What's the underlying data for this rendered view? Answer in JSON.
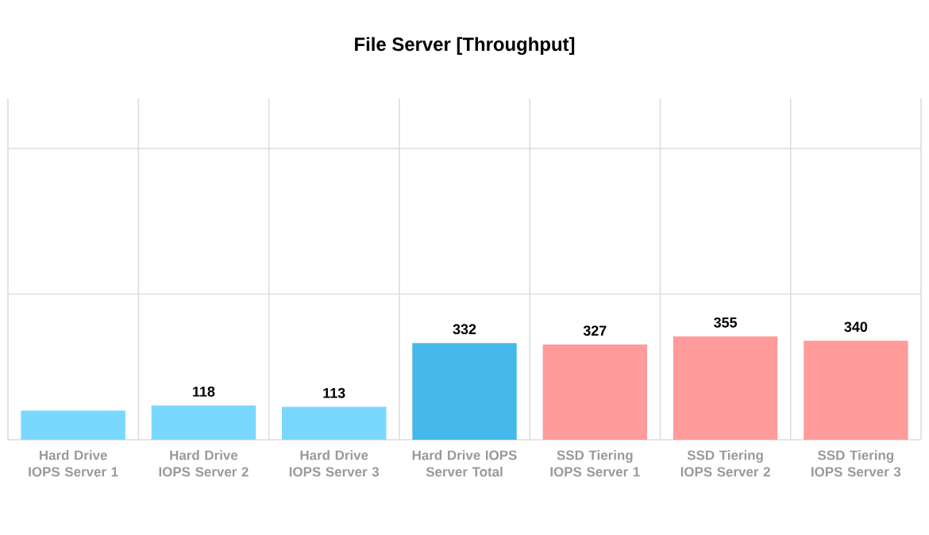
{
  "chart_data": {
    "type": "bar",
    "title": "File Server [Throughput]",
    "categories": [
      "Hard Drive IOPS Server 1",
      "Hard Drive IOPS Server 2",
      "Hard Drive IOPS Server 3",
      "Hard Drive IOPS Server Total",
      "SSD Tiering IOPS Server 1",
      "SSD Tiering IOPS Server 2",
      "SSD Tiering IOPS Server 3"
    ],
    "values": [
      100,
      118,
      113,
      332,
      327,
      355,
      340
    ],
    "value_labels": [
      null,
      "118",
      "113",
      "332",
      "327",
      "355",
      "340"
    ],
    "colors": [
      "#7ad8ff",
      "#7ad8ff",
      "#7ad8ff",
      "#45b9ea",
      "#ff9b9b",
      "#ff9b9b",
      "#ff9b9b"
    ],
    "grid": true
  }
}
